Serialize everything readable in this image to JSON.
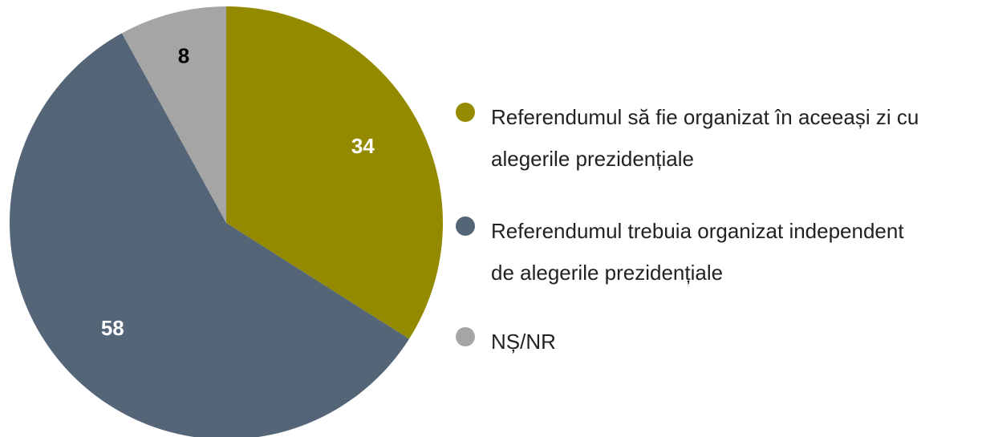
{
  "chart_data": {
    "type": "pie",
    "categories": [
      "Referendumul să fie organizat în aceeași zi cu alegerile prezidențiale",
      "Referendumul trebuia organizat independent de alegerile prezidențiale",
      "NȘ/NR"
    ],
    "values": [
      34,
      58,
      8
    ],
    "colors": [
      "#948a00",
      "#546577",
      "#a5a5a5"
    ],
    "label_colors": [
      "#ffffff",
      "#ffffff",
      "#000000"
    ]
  }
}
